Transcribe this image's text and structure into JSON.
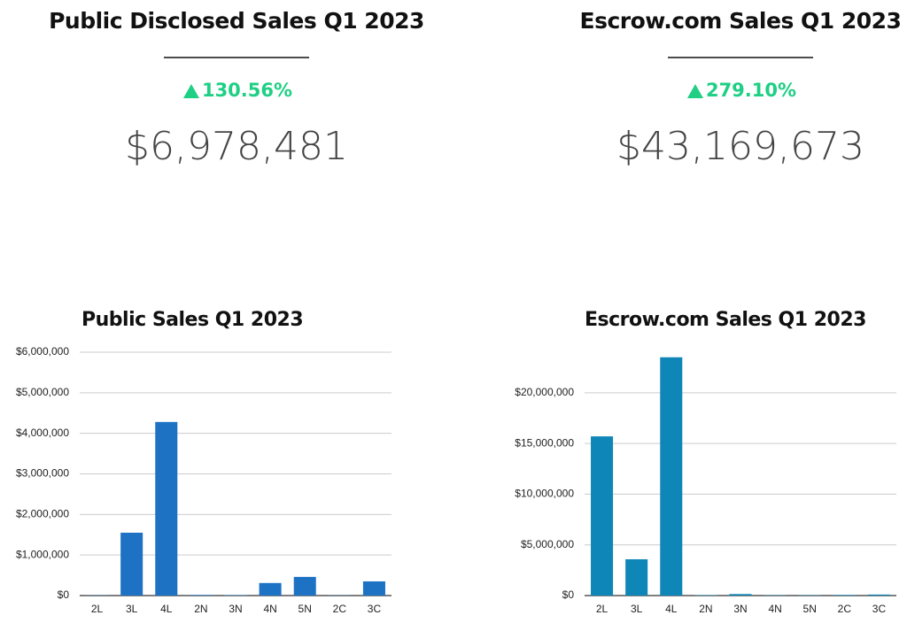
{
  "stats": [
    {
      "title": "Public Disclosed Sales Q1 2023",
      "change": "130.56%",
      "total": "$6,978,481"
    },
    {
      "title": "Escrow.com Sales Q1 2023",
      "change": "279.10%",
      "total": "$43,169,673"
    }
  ],
  "chart_data": [
    {
      "type": "bar",
      "title": "Public Sales Q1 2023",
      "categories": [
        "2L",
        "3L",
        "4L",
        "2N",
        "3N",
        "4N",
        "5N",
        "2C",
        "3C"
      ],
      "values": [
        5000,
        1550000,
        4280000,
        15000,
        10000,
        310000,
        460000,
        5000,
        350000
      ],
      "color": "#1d72c4",
      "ylim": [
        0,
        6000000
      ],
      "yticks": [
        {
          "value": 0,
          "label": "$0"
        },
        {
          "value": 1000000,
          "label": "$1,000,000"
        },
        {
          "value": 2000000,
          "label": "$2,000,000"
        },
        {
          "value": 3000000,
          "label": "$3,000,000"
        },
        {
          "value": 4000000,
          "label": "$4,000,000"
        },
        {
          "value": 5000000,
          "label": "$5,000,000"
        },
        {
          "value": 6000000,
          "label": "$6,000,000"
        }
      ],
      "grid": true
    },
    {
      "type": "bar",
      "title": "Escrow.com Sales Q1 2023",
      "categories": [
        "2L",
        "3L",
        "4L",
        "2N",
        "3N",
        "4N",
        "5N",
        "2C",
        "3C"
      ],
      "values": [
        15700000,
        3580000,
        23500000,
        40000,
        150000,
        30000,
        30000,
        60000,
        100000
      ],
      "color": "#0e86b8",
      "ylim": [
        0,
        24000000
      ],
      "yticks": [
        {
          "value": 0,
          "label": "$0"
        },
        {
          "value": 5000000,
          "label": "$5,000,000"
        },
        {
          "value": 10000000,
          "label": "$10,000,000"
        },
        {
          "value": 15000000,
          "label": "$15,000,000"
        },
        {
          "value": 20000000,
          "label": "$20,000,000"
        }
      ],
      "grid": true
    }
  ]
}
